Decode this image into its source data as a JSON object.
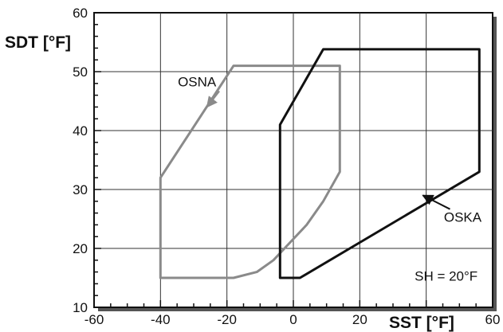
{
  "chart_data": {
    "type": "line",
    "xlabel": "SST [°F]",
    "ylabel": "SDT [°F]",
    "xlim": [
      -60,
      60
    ],
    "ylim": [
      10,
      60
    ],
    "x_ticks": [
      -60,
      -40,
      -20,
      0,
      20,
      40,
      60
    ],
    "y_ticks": [
      10,
      20,
      30,
      40,
      50,
      60
    ],
    "x_tick_labels": [
      "-60",
      "-40",
      "-20",
      "0",
      "20",
      "",
      "60"
    ],
    "y_tick_labels": [
      "10",
      "20",
      "30",
      "40",
      "50",
      "60"
    ],
    "grid": true,
    "series": [
      {
        "name": "OSNA",
        "color": "#8a8a8a",
        "closed": true,
        "points": [
          [
            -40,
            15
          ],
          [
            -40,
            32
          ],
          [
            -18,
            51
          ],
          [
            14,
            51
          ],
          [
            14,
            33
          ],
          [
            9,
            28
          ],
          [
            4,
            24
          ],
          [
            -1,
            21
          ],
          [
            -6,
            18
          ],
          [
            -11,
            16
          ],
          [
            -18,
            15
          ]
        ]
      },
      {
        "name": "OSKA",
        "color": "#111111",
        "closed": true,
        "points": [
          [
            -4,
            15
          ],
          [
            -4,
            41
          ],
          [
            9,
            53.8
          ],
          [
            56,
            53.8
          ],
          [
            56,
            33
          ],
          [
            2,
            15
          ]
        ]
      }
    ],
    "annotations": [
      {
        "text": "OSNA",
        "x": -29,
        "y": 47.5,
        "arrow_to": [
          -26,
          44
        ]
      },
      {
        "text": "OSKA",
        "x": 51,
        "y": 24.5,
        "arrow_to": [
          39,
          29
        ]
      },
      {
        "text": "SH = 20°F",
        "x": 46,
        "y": 14.5
      }
    ]
  }
}
